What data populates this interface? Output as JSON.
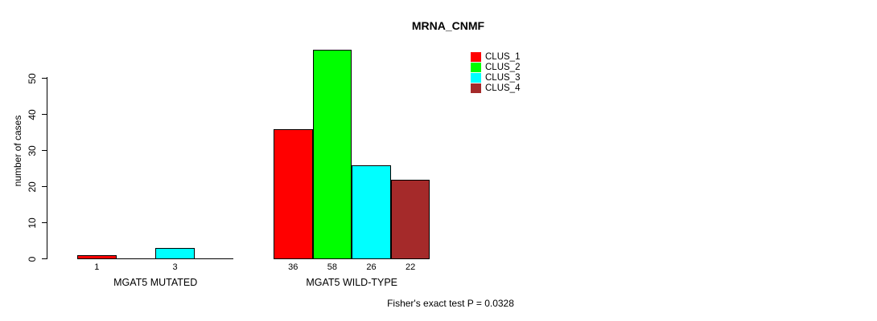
{
  "title": "MRNA_CNMF",
  "ylabel": "number of cases",
  "footer": "Fisher's exact test P = 0.0328",
  "legend": {
    "items": [
      {
        "label": "CLUS_1",
        "color": "#ff0000"
      },
      {
        "label": "CLUS_2",
        "color": "#00ff00"
      },
      {
        "label": "CLUS_3",
        "color": "#00ffff"
      },
      {
        "label": "CLUS_4",
        "color": "#a52a2a"
      }
    ]
  },
  "chart_data": {
    "type": "bar",
    "title": "MRNA_CNMF",
    "ylabel": "number of cases",
    "xlabel": "",
    "categories": [
      "MGAT5 MUTATED",
      "MGAT5 WILD-TYPE"
    ],
    "series": [
      {
        "name": "CLUS_1",
        "color": "#ff0000",
        "values": [
          1,
          36
        ]
      },
      {
        "name": "CLUS_2",
        "color": "#00ff00",
        "values": [
          0,
          58
        ]
      },
      {
        "name": "CLUS_3",
        "color": "#00ffff",
        "values": [
          3,
          26
        ]
      },
      {
        "name": "CLUS_4",
        "color": "#a52a2a",
        "values": [
          0,
          22
        ]
      }
    ],
    "bar_value_labels": {
      "MGAT5 MUTATED": [
        1,
        null,
        3,
        null
      ],
      "MGAT5 WILD-TYPE": [
        36,
        58,
        26,
        22
      ]
    },
    "yticks": [
      0,
      10,
      20,
      30,
      40,
      50
    ],
    "ylim": [
      0,
      58
    ],
    "grid": false,
    "legend_position": "top-right",
    "annotation": "Fisher's exact test P = 0.0328"
  }
}
